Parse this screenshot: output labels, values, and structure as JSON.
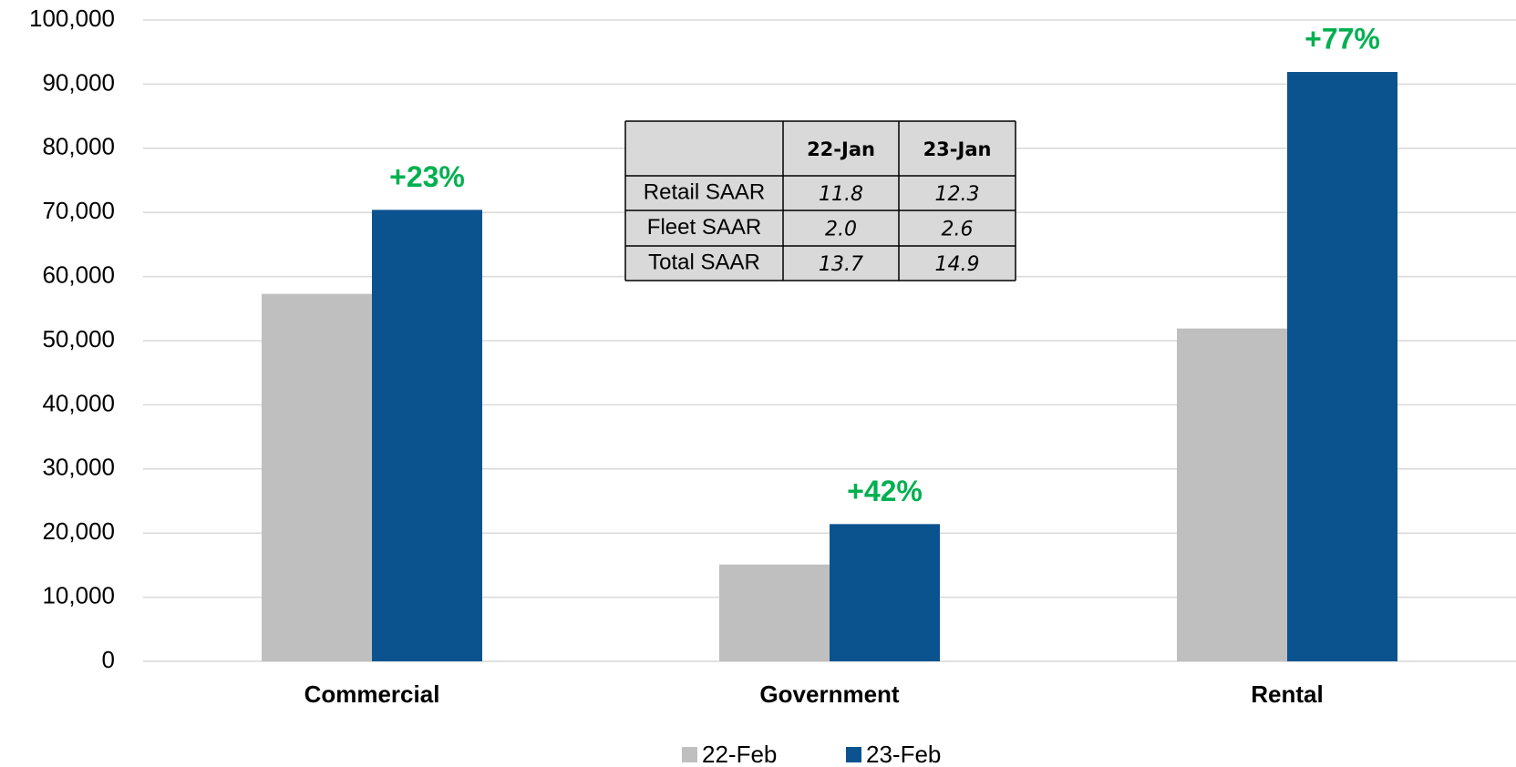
{
  "chart_data": {
    "type": "bar",
    "categories": [
      "Commercial",
      "Government",
      "Rental"
    ],
    "series": [
      {
        "name": "22-Feb",
        "color": "#bfbfbf",
        "values": [
          57300,
          15100,
          51900
        ]
      },
      {
        "name": "23-Feb",
        "color": "#0b538e",
        "values": [
          70400,
          21400,
          91900
        ]
      }
    ],
    "annotations": [
      "+23%",
      "+42%",
      "+77%"
    ],
    "annotation_color": "#00b050",
    "ylim": [
      0,
      100000
    ],
    "yticks": [
      0,
      {
        "value": 10000,
        "label": "10,000"
      },
      {
        "value": 20000,
        "label": "20,000"
      },
      {
        "value": 30000,
        "label": "30,000"
      },
      {
        "value": 40000,
        "label": "40,000"
      },
      {
        "value": 50000,
        "label": "50,000"
      },
      {
        "value": 60000,
        "label": "60,000"
      },
      {
        "value": 70000,
        "label": "70,000"
      },
      {
        "value": 80000,
        "label": "80,000"
      },
      {
        "value": 90000,
        "label": "90,000"
      },
      {
        "value": 100000,
        "label": "100,000"
      }
    ],
    "grid": true,
    "legend": "bottom"
  },
  "table": {
    "columns": [
      "22-Jan",
      "23-Jan"
    ],
    "rows": [
      {
        "label": "Retail SAAR",
        "values": [
          "11.8",
          "12.3"
        ]
      },
      {
        "label": "Fleet SAAR",
        "values": [
          "2.0",
          "2.6"
        ]
      },
      {
        "label": "Total SAAR",
        "values": [
          "13.7",
          "14.9"
        ]
      }
    ]
  }
}
